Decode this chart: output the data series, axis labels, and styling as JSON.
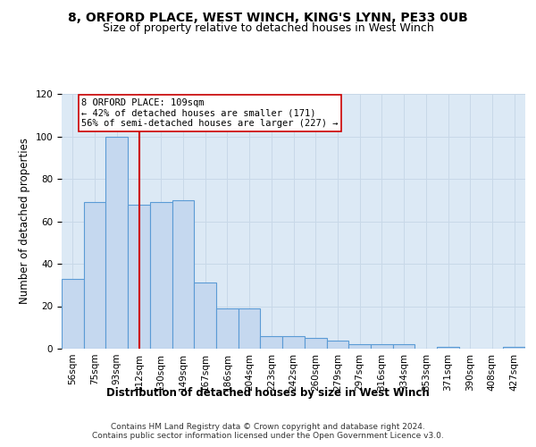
{
  "title1": "8, ORFORD PLACE, WEST WINCH, KING'S LYNN, PE33 0UB",
  "title2": "Size of property relative to detached houses in West Winch",
  "xlabel": "Distribution of detached houses by size in West Winch",
  "ylabel": "Number of detached properties",
  "bin_labels": [
    "56sqm",
    "75sqm",
    "93sqm",
    "112sqm",
    "130sqm",
    "149sqm",
    "167sqm",
    "186sqm",
    "204sqm",
    "223sqm",
    "242sqm",
    "260sqm",
    "279sqm",
    "297sqm",
    "316sqm",
    "334sqm",
    "353sqm",
    "371sqm",
    "390sqm",
    "408sqm",
    "427sqm"
  ],
  "bar_values": [
    33,
    69,
    100,
    68,
    69,
    70,
    31,
    19,
    19,
    6,
    6,
    5,
    4,
    2,
    2,
    2,
    0,
    1,
    0,
    0,
    1
  ],
  "bar_color": "#c5d8ef",
  "bar_edge_color": "#5b9bd5",
  "vline_pos": 3.0,
  "annotation_text": "8 ORFORD PLACE: 109sqm\n← 42% of detached houses are smaller (171)\n56% of semi-detached houses are larger (227) →",
  "annotation_box_color": "#ffffff",
  "annotation_box_edge_color": "#cc0000",
  "vline_color": "#cc0000",
  "grid_color": "#c8d8e8",
  "background_color": "#dce9f5",
  "footer_text": "Contains HM Land Registry data © Crown copyright and database right 2024.\nContains public sector information licensed under the Open Government Licence v3.0.",
  "ylim": [
    0,
    120
  ],
  "yticks": [
    0,
    20,
    40,
    60,
    80,
    100,
    120
  ],
  "title_fontsize": 10,
  "subtitle_fontsize": 9,
  "tick_fontsize": 7.5,
  "ylabel_fontsize": 8.5,
  "xlabel_fontsize": 8.5,
  "annotation_fontsize": 7.5,
  "footer_fontsize": 6.5
}
